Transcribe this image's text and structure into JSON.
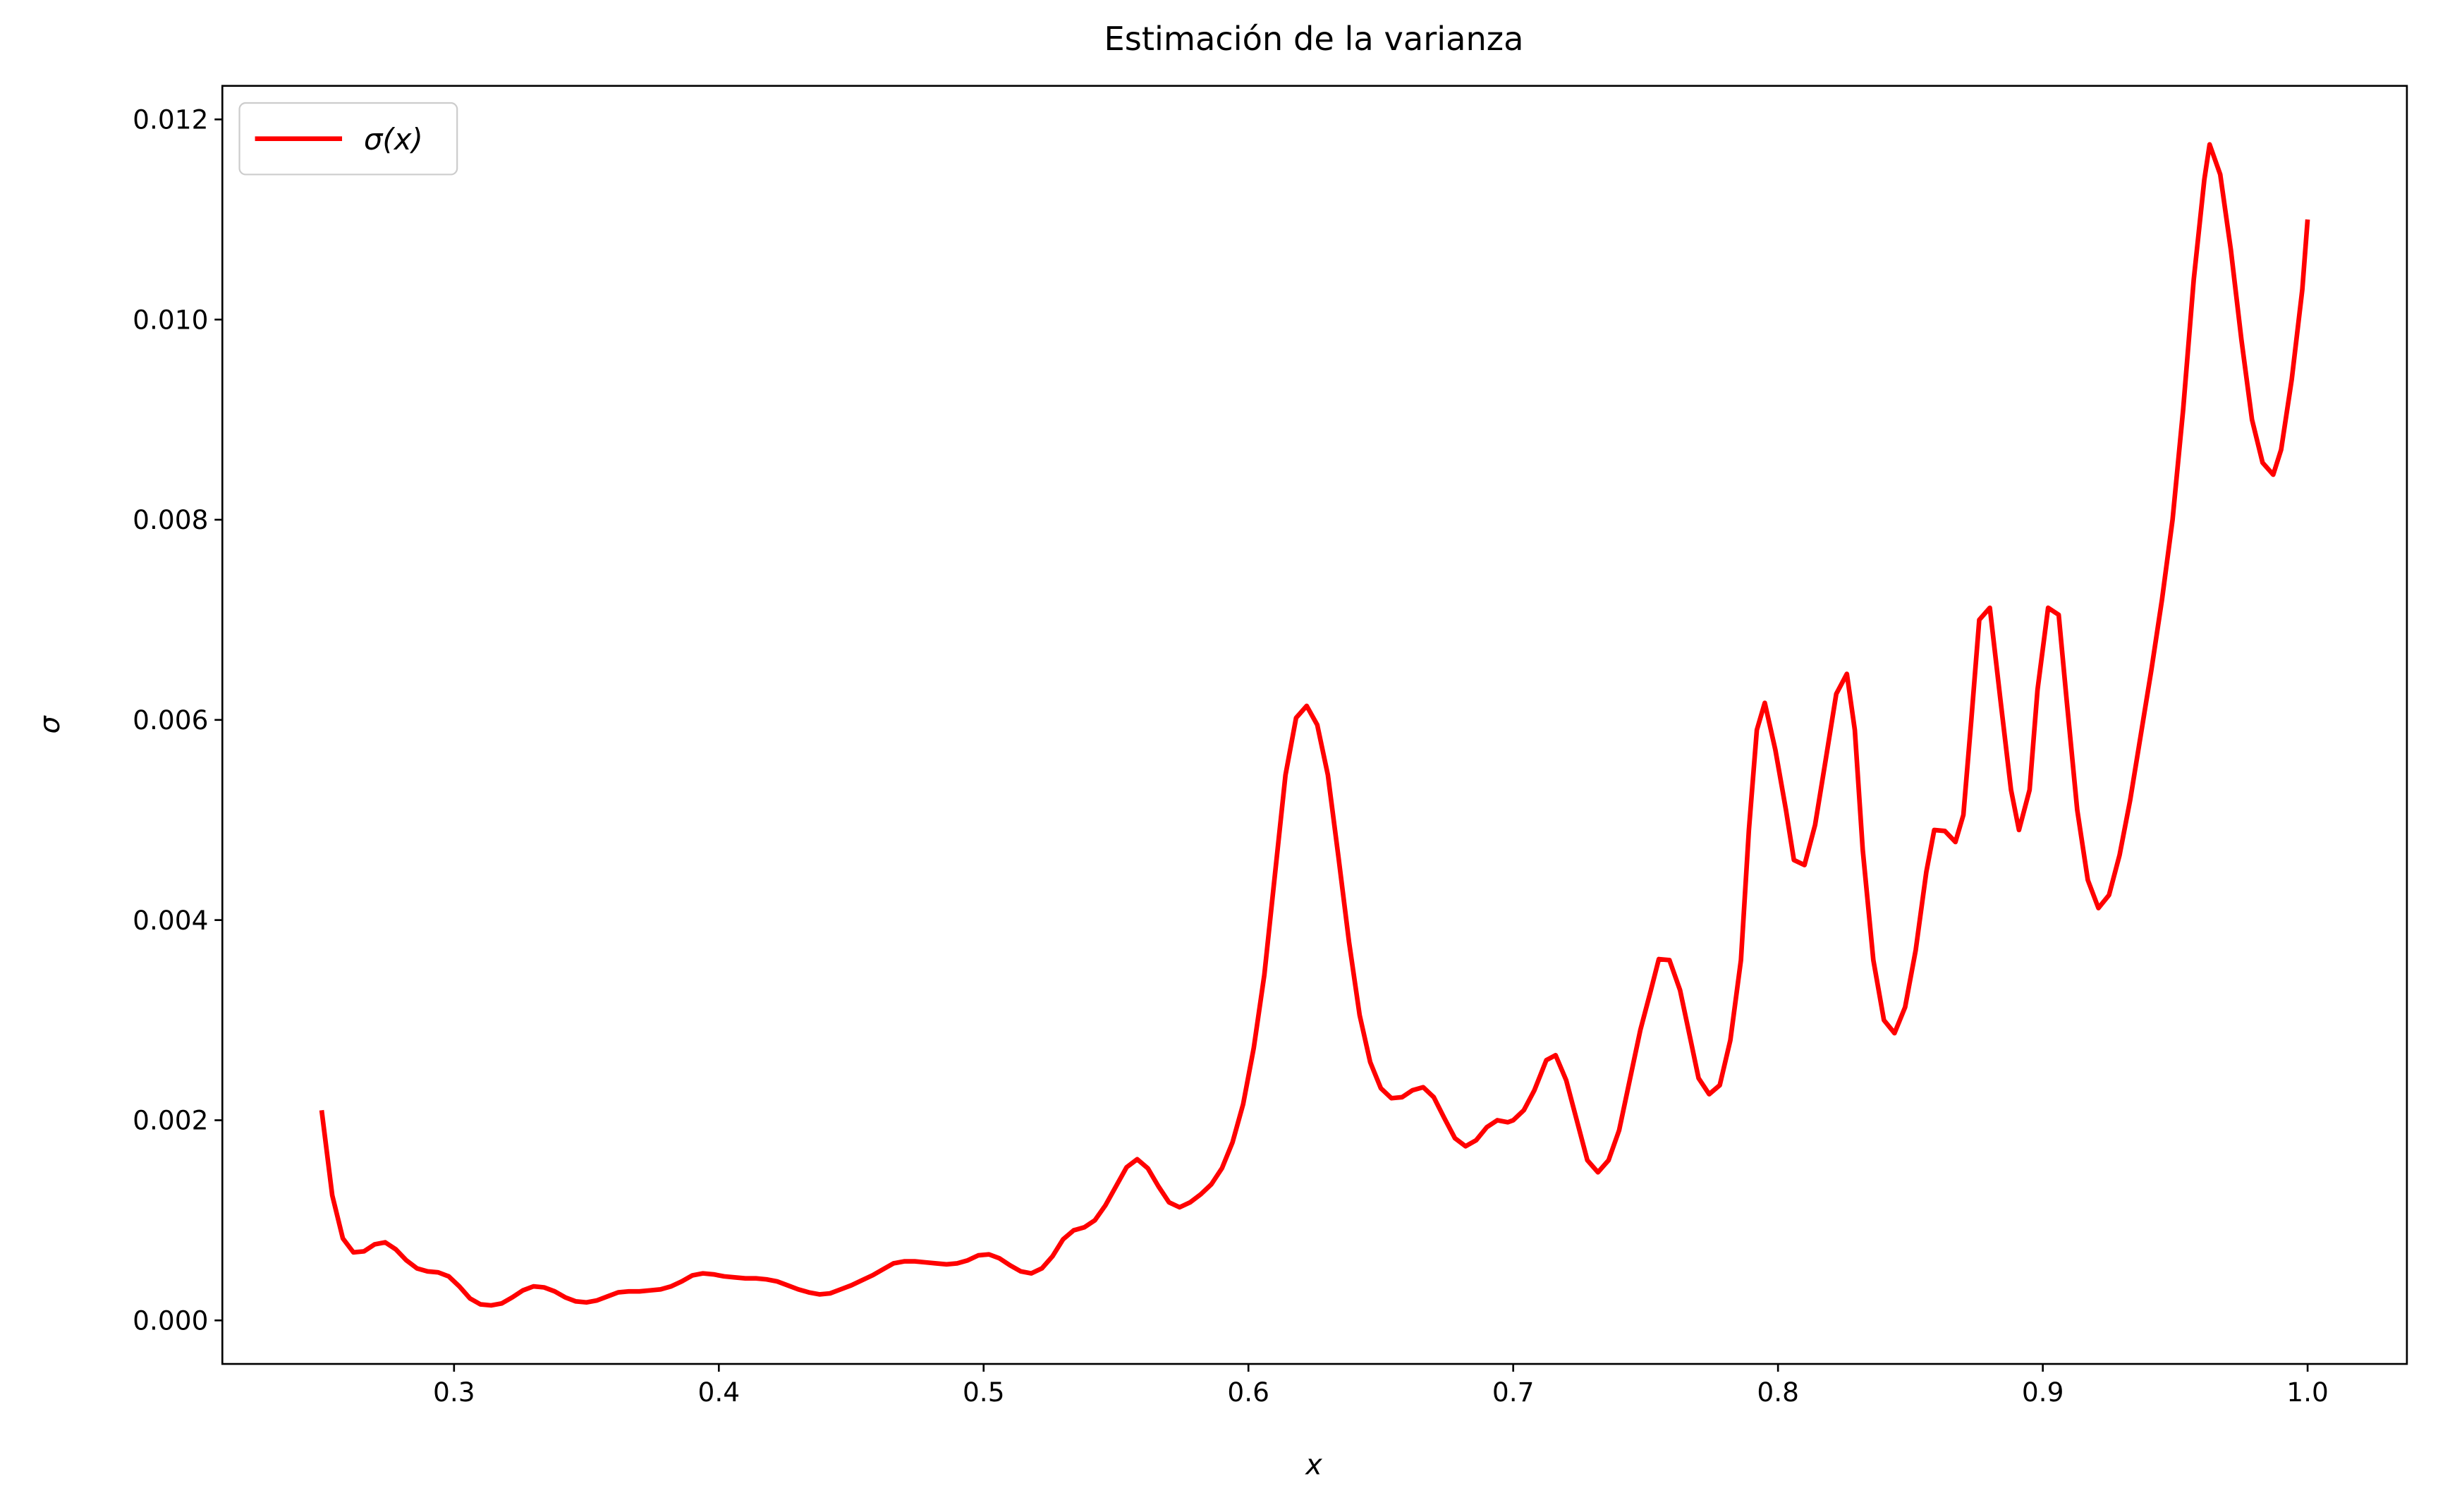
{
  "chart_data": {
    "type": "line",
    "title": "Estimación de la varianza",
    "xlabel": "x",
    "ylabel": "σ",
    "x": [
      0.25,
      0.254,
      0.258,
      0.262,
      0.266,
      0.27,
      0.274,
      0.278,
      0.282,
      0.286,
      0.29,
      0.294,
      0.298,
      0.302,
      0.306,
      0.31,
      0.314,
      0.318,
      0.322,
      0.326,
      0.33,
      0.334,
      0.338,
      0.342,
      0.346,
      0.35,
      0.354,
      0.358,
      0.362,
      0.366,
      0.37,
      0.374,
      0.378,
      0.382,
      0.386,
      0.39,
      0.394,
      0.398,
      0.402,
      0.406,
      0.41,
      0.414,
      0.418,
      0.422,
      0.426,
      0.43,
      0.434,
      0.438,
      0.442,
      0.446,
      0.45,
      0.454,
      0.458,
      0.462,
      0.466,
      0.47,
      0.474,
      0.478,
      0.482,
      0.486,
      0.49,
      0.494,
      0.498,
      0.502,
      0.506,
      0.51,
      0.514,
      0.518,
      0.522,
      0.526,
      0.53,
      0.534,
      0.538,
      0.542,
      0.546,
      0.55,
      0.554,
      0.558,
      0.562,
      0.566,
      0.57,
      0.574,
      0.578,
      0.582,
      0.586,
      0.59,
      0.594,
      0.598,
      0.602,
      0.606,
      0.61,
      0.614,
      0.618,
      0.622,
      0.626,
      0.63,
      0.634,
      0.638,
      0.642,
      0.646,
      0.65,
      0.654,
      0.658,
      0.662,
      0.666,
      0.67,
      0.674,
      0.678,
      0.682,
      0.686,
      0.69,
      0.694,
      0.698,
      0.7,
      0.704,
      0.708,
      0.7125,
      0.716,
      0.72,
      0.724,
      0.728,
      0.732,
      0.736,
      0.74,
      0.744,
      0.748,
      0.752,
      0.755,
      0.759,
      0.763,
      0.767,
      0.77,
      0.774,
      0.778,
      0.782,
      0.786,
      0.789,
      0.792,
      0.795,
      0.799,
      0.803,
      0.806,
      0.81,
      0.814,
      0.818,
      0.822,
      0.826,
      0.829,
      0.832,
      0.836,
      0.84,
      0.844,
      0.848,
      0.852,
      0.856,
      0.859,
      0.863,
      0.867,
      0.87,
      0.873,
      0.876,
      0.88,
      0.884,
      0.888,
      0.891,
      0.895,
      0.898,
      0.902,
      0.906,
      0.909,
      0.913,
      0.917,
      0.921,
      0.925,
      0.929,
      0.933,
      0.937,
      0.941,
      0.945,
      0.949,
      0.953,
      0.957,
      0.961,
      0.963,
      0.967,
      0.971,
      0.975,
      0.979,
      0.983,
      0.987,
      0.99,
      0.994,
      0.998,
      1.0
    ],
    "series": [
      {
        "name": "σ(x)",
        "color": "#ff0000",
        "values": [
          0.0021,
          0.00125,
          0.00082,
          0.00068,
          0.00069,
          0.00076,
          0.00078,
          0.00071,
          0.0006,
          0.00052,
          0.00049,
          0.00048,
          0.00044,
          0.00034,
          0.00022,
          0.00016,
          0.00015,
          0.00017,
          0.00023,
          0.0003,
          0.00034,
          0.00033,
          0.00029,
          0.00023,
          0.00019,
          0.00018,
          0.0002,
          0.00024,
          0.00028,
          0.00029,
          0.00029,
          0.0003,
          0.00031,
          0.00034,
          0.00039,
          0.00045,
          0.00047,
          0.00046,
          0.00044,
          0.00043,
          0.00042,
          0.00042,
          0.00041,
          0.00039,
          0.00035,
          0.00031,
          0.00028,
          0.00026,
          0.00027,
          0.00031,
          0.00035,
          0.0004,
          0.00045,
          0.00051,
          0.00057,
          0.00059,
          0.00059,
          0.00058,
          0.00057,
          0.00056,
          0.00057,
          0.0006,
          0.00065,
          0.00066,
          0.00062,
          0.00055,
          0.00049,
          0.00047,
          0.00052,
          0.00064,
          0.00081,
          0.0009,
          0.00093,
          0.001,
          0.00115,
          0.00134,
          0.00153,
          0.00161,
          0.00152,
          0.00134,
          0.00118,
          0.00113,
          0.00118,
          0.00126,
          0.00136,
          0.00152,
          0.00178,
          0.00216,
          0.00272,
          0.00345,
          0.00445,
          0.00545,
          0.00602,
          0.00614,
          0.00595,
          0.00545,
          0.00463,
          0.00378,
          0.00305,
          0.00258,
          0.00232,
          0.00222,
          0.00223,
          0.0023,
          0.00233,
          0.00223,
          0.00202,
          0.00182,
          0.00174,
          0.0018,
          0.00193,
          0.002,
          0.00198,
          0.002,
          0.0021,
          0.0023,
          0.0026,
          0.00265,
          0.0024,
          0.002,
          0.0016,
          0.00148,
          0.0016,
          0.0019,
          0.0024,
          0.0029,
          0.0033,
          0.00361,
          0.0036,
          0.0033,
          0.0028,
          0.00242,
          0.00226,
          0.00235,
          0.0028,
          0.0036,
          0.0049,
          0.0059,
          0.00617,
          0.0057,
          0.0051,
          0.0046,
          0.00455,
          0.00495,
          0.0056,
          0.00626,
          0.00646,
          0.0059,
          0.0047,
          0.0036,
          0.003,
          0.00287,
          0.00313,
          0.0037,
          0.00448,
          0.0049,
          0.00489,
          0.00478,
          0.00505,
          0.006,
          0.007,
          0.00712,
          0.0062,
          0.0053,
          0.0049,
          0.0053,
          0.0063,
          0.00712,
          0.00705,
          0.0062,
          0.0051,
          0.0044,
          0.00412,
          0.00425,
          0.00465,
          0.0052,
          0.00585,
          0.0065,
          0.0072,
          0.008,
          0.0091,
          0.0104,
          0.0114,
          0.01175,
          0.01145,
          0.0107,
          0.0098,
          0.009,
          0.00857,
          0.00845,
          0.0087,
          0.0094,
          0.0103,
          0.011
        ]
      }
    ],
    "xlim": [
      0.2125,
      1.0375
    ],
    "ylim": [
      -0.000435,
      0.012335
    ],
    "xticks": [
      0.3,
      0.4,
      0.5,
      0.6,
      0.7,
      0.8,
      0.9,
      {
        "value": 1.0,
        "label": "1.0"
      }
    ],
    "yticks": [
      {
        "value": 0,
        "label": "0.000"
      },
      {
        "value": 0.002,
        "label": "0.002"
      },
      {
        "value": 0.004,
        "label": "0.004"
      },
      {
        "value": 0.006,
        "label": "0.006"
      },
      {
        "value": 0.008,
        "label": "0.008"
      },
      {
        "value": 0.01,
        "label": "0.010"
      },
      {
        "value": 0.012,
        "label": "0.012"
      }
    ],
    "grid": false,
    "legend": "upper left"
  }
}
